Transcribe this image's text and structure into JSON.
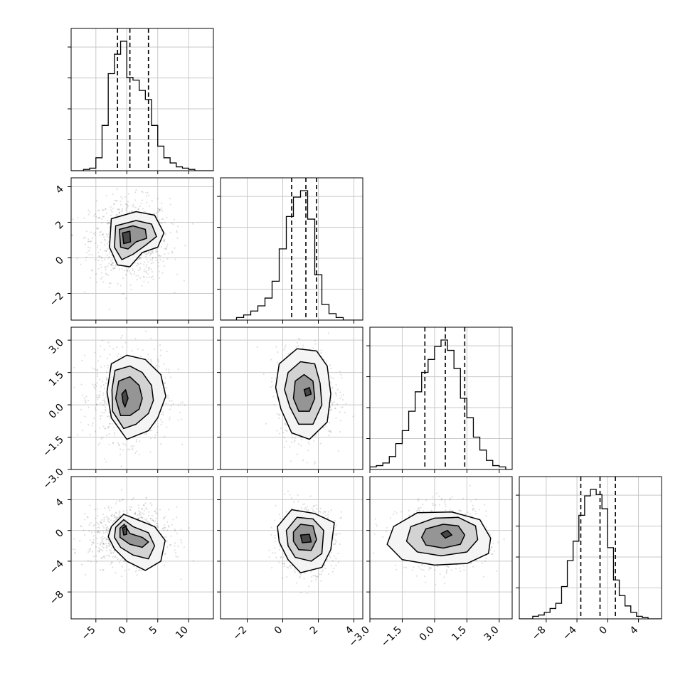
{
  "chart_data": {
    "type": "corner",
    "grid": true,
    "variables": [
      {
        "range": [
          -9,
          14
        ],
        "ticks": [
          -5,
          0,
          5,
          10
        ],
        "tick_labels": [
          "−5",
          "0",
          "5",
          "10"
        ],
        "quantiles": [
          -1.5,
          0.5,
          3.5
        ],
        "hist_edges": [
          -8,
          -7,
          -6,
          -5,
          -4,
          -3,
          -2,
          -1,
          0,
          1,
          2,
          3,
          4,
          5,
          6,
          7,
          8,
          9,
          10,
          11,
          12,
          13
        ],
        "hist_counts": [
          0.0,
          0.01,
          0.02,
          0.1,
          0.35,
          0.75,
          0.9,
          1.0,
          0.72,
          0.7,
          0.62,
          0.55,
          0.35,
          0.19,
          0.1,
          0.06,
          0.03,
          0.02,
          0.01,
          0.0,
          0.0
        ]
      },
      {
        "range": [
          -3.5,
          4.5
        ],
        "ticks": [
          -2,
          0,
          2,
          4
        ],
        "tick_labels": [
          "−2",
          "0",
          "2",
          "4"
        ],
        "quantiles": [
          0.5,
          1.3,
          1.9
        ],
        "hist_edges": [
          -3.0,
          -2.6,
          -2.2,
          -1.8,
          -1.4,
          -1.0,
          -0.6,
          -0.2,
          0.2,
          0.6,
          1.0,
          1.4,
          1.8,
          2.2,
          2.6,
          3.0,
          3.4,
          3.8
        ],
        "hist_counts": [
          0.0,
          0.02,
          0.04,
          0.07,
          0.11,
          0.17,
          0.3,
          0.55,
          0.8,
          0.95,
          1.0,
          0.78,
          0.35,
          0.12,
          0.05,
          0.02,
          0.0
        ]
      },
      {
        "range": [
          -3.0,
          3.6
        ],
        "ticks": [
          -3.0,
          -1.5,
          0.0,
          1.5,
          3.0
        ],
        "tick_labels": [
          "−3.0",
          "−1.5",
          "0.0",
          "1.5",
          "3.0"
        ],
        "quantiles": [
          -0.45,
          0.5,
          1.4
        ],
        "hist_edges": [
          -3.0,
          -2.7,
          -2.4,
          -2.1,
          -1.8,
          -1.5,
          -1.2,
          -0.9,
          -0.6,
          -0.3,
          0.0,
          0.3,
          0.6,
          0.9,
          1.2,
          1.5,
          1.8,
          2.1,
          2.4,
          2.7,
          3.0,
          3.3,
          3.6
        ],
        "hist_counts": [
          0.02,
          0.03,
          0.05,
          0.1,
          0.2,
          0.3,
          0.45,
          0.6,
          0.75,
          0.85,
          0.95,
          1.0,
          0.92,
          0.78,
          0.55,
          0.4,
          0.25,
          0.15,
          0.07,
          0.03,
          0.02,
          0.0
        ]
      },
      {
        "range": [
          -11.5,
          7.0
        ],
        "ticks": [
          -8,
          -4,
          0,
          4
        ],
        "tick_labels": [
          "−8",
          "−4",
          "0",
          "4"
        ],
        "quantiles": [
          -3.5,
          -1.0,
          1.0
        ],
        "hist_edges": [
          -10.5,
          -9.75,
          -9.0,
          -8.25,
          -7.5,
          -6.75,
          -6.0,
          -5.25,
          -4.5,
          -3.75,
          -3.0,
          -2.25,
          -1.5,
          -0.75,
          0.0,
          0.75,
          1.5,
          2.25,
          3.0,
          3.75,
          4.5,
          5.25,
          6.0
        ],
        "hist_counts": [
          0.0,
          0.02,
          0.03,
          0.05,
          0.08,
          0.12,
          0.25,
          0.45,
          0.6,
          0.8,
          0.95,
          1.0,
          0.96,
          0.85,
          0.55,
          0.3,
          0.18,
          0.1,
          0.05,
          0.02,
          0.01,
          0.0
        ]
      }
    ],
    "y_ticks": {
      "1": {
        "ticks": [
          -2,
          0,
          2,
          4
        ],
        "tick_labels": [
          "−2",
          "0",
          "2",
          "4"
        ]
      },
      "2": {
        "ticks": [
          -3.0,
          -1.5,
          0.0,
          1.5,
          3.0
        ],
        "tick_labels": [
          "−3.0",
          "−1.5",
          "0.0",
          "1.5",
          "3.0"
        ]
      },
      "3": {
        "ticks": [
          -8,
          -4,
          0,
          4
        ],
        "tick_labels": [
          "−8",
          "−4",
          "0",
          "4"
        ]
      }
    },
    "pairs": [
      {
        "row": 1,
        "col": 0,
        "center": [
          0.5,
          1.0
        ],
        "spread": [
          2.8,
          1.0
        ],
        "contours": [
          [
            [
              -2.5,
              2.2
            ],
            [
              1.5,
              2.6
            ],
            [
              4.5,
              2.4
            ],
            [
              6.0,
              1.4
            ],
            [
              5.0,
              0.6
            ],
            [
              2.5,
              0.3
            ],
            [
              0.5,
              -0.5
            ],
            [
              -1.5,
              -0.4
            ],
            [
              -2.8,
              0.6
            ]
          ],
          [
            [
              -1.8,
              1.8
            ],
            [
              1.5,
              2.1
            ],
            [
              4.0,
              1.9
            ],
            [
              4.8,
              1.2
            ],
            [
              3.0,
              0.7
            ],
            [
              1.0,
              0.2
            ],
            [
              -0.8,
              -0.1
            ],
            [
              -2.0,
              0.6
            ]
          ],
          [
            [
              -1.2,
              1.6
            ],
            [
              1.0,
              1.8
            ],
            [
              3.0,
              1.6
            ],
            [
              3.2,
              1.1
            ],
            [
              1.5,
              0.9
            ],
            [
              0.2,
              0.5
            ],
            [
              -1.0,
              0.6
            ]
          ],
          [
            [
              -0.7,
              1.4
            ],
            [
              0.5,
              1.5
            ],
            [
              0.6,
              0.9
            ],
            [
              -0.5,
              0.8
            ]
          ]
        ]
      },
      {
        "row": 2,
        "col": 0,
        "center": [
          0.5,
          0.4
        ],
        "spread": [
          2.6,
          0.9
        ],
        "contours": [
          [
            [
              -2.5,
              1.9
            ],
            [
              0,
              2.3
            ],
            [
              3,
              2.1
            ],
            [
              5.5,
              1.4
            ],
            [
              6.3,
              0.4
            ],
            [
              5.0,
              -0.6
            ],
            [
              3.5,
              -1.2
            ],
            [
              0,
              -1.6
            ],
            [
              -2.5,
              -0.6
            ],
            [
              -3.2,
              0.6
            ]
          ],
          [
            [
              -1.9,
              1.6
            ],
            [
              0.5,
              1.8
            ],
            [
              2.5,
              1.5
            ],
            [
              4.0,
              0.9
            ],
            [
              4.3,
              0.2
            ],
            [
              3.5,
              -0.4
            ],
            [
              1.5,
              -0.9
            ],
            [
              -0.5,
              -1.1
            ],
            [
              -2.3,
              -0.3
            ],
            [
              -2.4,
              0.7
            ]
          ],
          [
            [
              -1.3,
              1.1
            ],
            [
              0.5,
              1.3
            ],
            [
              2.0,
              0.9
            ],
            [
              2.5,
              0.3
            ],
            [
              2.0,
              -0.2
            ],
            [
              0.5,
              -0.5
            ],
            [
              -1.0,
              -0.5
            ],
            [
              -1.8,
              0.3
            ]
          ],
          [
            [
              -0.8,
              0.5
            ],
            [
              -0.2,
              0.7
            ],
            [
              0.2,
              0.3
            ],
            [
              -0.3,
              -0.1
            ],
            [
              -0.6,
              0.1
            ]
          ]
        ]
      },
      {
        "row": 2,
        "col": 1,
        "center": [
          1.3,
          0.5
        ],
        "spread": [
          0.7,
          0.9
        ],
        "contours": [
          [
            [
              -0.2,
              1.9
            ],
            [
              0.8,
              2.6
            ],
            [
              1.9,
              2.5
            ],
            [
              2.5,
              1.8
            ],
            [
              2.7,
              0.5
            ],
            [
              2.5,
              -0.8
            ],
            [
              1.5,
              -1.6
            ],
            [
              0.5,
              -1.3
            ],
            [
              -0.1,
              -0.2
            ],
            [
              -0.4,
              0.8
            ]
          ],
          [
            [
              0.3,
              1.5
            ],
            [
              1.0,
              2.0
            ],
            [
              1.8,
              1.9
            ],
            [
              2.1,
              1.0
            ],
            [
              2.2,
              0.0
            ],
            [
              1.7,
              -0.9
            ],
            [
              0.9,
              -0.9
            ],
            [
              0.4,
              -0.1
            ],
            [
              0.1,
              0.7
            ]
          ],
          [
            [
              0.7,
              1.1
            ],
            [
              1.2,
              1.4
            ],
            [
              1.7,
              1.1
            ],
            [
              1.8,
              0.3
            ],
            [
              1.5,
              -0.3
            ],
            [
              0.9,
              -0.3
            ],
            [
              0.6,
              0.3
            ]
          ],
          [
            [
              1.2,
              0.7
            ],
            [
              1.5,
              0.8
            ],
            [
              1.6,
              0.5
            ],
            [
              1.3,
              0.4
            ]
          ]
        ]
      },
      {
        "row": 3,
        "col": 0,
        "center": [
          0.5,
          -0.8
        ],
        "spread": [
          2.8,
          1.6
        ],
        "contours": [
          [
            [
              -2.5,
              0.5
            ],
            [
              -0.5,
              2.1
            ],
            [
              2.0,
              1.3
            ],
            [
              4.5,
              0.5
            ],
            [
              6.2,
              -1.3
            ],
            [
              5.5,
              -4.0
            ],
            [
              3.0,
              -5.2
            ],
            [
              0,
              -4.0
            ],
            [
              -2.0,
              -2.4
            ],
            [
              -3.0,
              -0.8
            ]
          ],
          [
            [
              -1.8,
              0.4
            ],
            [
              -0.5,
              1.4
            ],
            [
              1.0,
              0.5
            ],
            [
              3.5,
              -0.3
            ],
            [
              4.5,
              -2.0
            ],
            [
              3.5,
              -3.7
            ],
            [
              1.0,
              -3.2
            ],
            [
              -1.0,
              -2.2
            ],
            [
              -2.0,
              -0.9
            ]
          ],
          [
            [
              -1.1,
              0.3
            ],
            [
              -0.4,
              0.8
            ],
            [
              0.5,
              -0.4
            ],
            [
              2.5,
              -0.9
            ],
            [
              3.5,
              -1.5
            ],
            [
              2.5,
              -2.2
            ],
            [
              0.5,
              -1.8
            ],
            [
              -1.1,
              -0.9
            ]
          ],
          [
            [
              -0.7,
              0.3
            ],
            [
              -0.1,
              0.6
            ],
            [
              0.0,
              -0.5
            ],
            [
              -0.5,
              -0.6
            ]
          ]
        ]
      },
      {
        "row": 3,
        "col": 1,
        "center": [
          1.3,
          -1.2
        ],
        "spread": [
          0.7,
          1.8
        ],
        "contours": [
          [
            [
              -0.3,
              0.5
            ],
            [
              0.5,
              2.7
            ],
            [
              1.8,
              2.2
            ],
            [
              2.9,
              1.0
            ],
            [
              2.7,
              -2.5
            ],
            [
              2.2,
              -4.8
            ],
            [
              1.0,
              -5.5
            ],
            [
              0.3,
              -3.8
            ],
            [
              -0.2,
              -1.5
            ]
          ],
          [
            [
              0.2,
              0.0
            ],
            [
              0.8,
              1.7
            ],
            [
              1.7,
              1.5
            ],
            [
              2.3,
              0.0
            ],
            [
              2.2,
              -3.0
            ],
            [
              1.6,
              -4.0
            ],
            [
              0.7,
              -3.5
            ],
            [
              0.3,
              -2.0
            ]
          ],
          [
            [
              0.6,
              -0.2
            ],
            [
              1.0,
              0.8
            ],
            [
              1.7,
              0.6
            ],
            [
              1.9,
              -1.2
            ],
            [
              1.6,
              -2.6
            ],
            [
              0.9,
              -2.5
            ],
            [
              0.6,
              -1.4
            ]
          ],
          [
            [
              1.0,
              -0.6
            ],
            [
              1.5,
              -0.5
            ],
            [
              1.6,
              -1.5
            ],
            [
              1.1,
              -1.6
            ]
          ]
        ]
      },
      {
        "row": 3,
        "col": 2,
        "center": [
          0.4,
          -1.0
        ],
        "spread": [
          0.9,
          1.8
        ],
        "contours": [
          [
            [
              -1.9,
              0.5
            ],
            [
              -0.8,
              2.3
            ],
            [
              0.8,
              2.4
            ],
            [
              2.1,
              1.4
            ],
            [
              2.6,
              -1.0
            ],
            [
              2.5,
              -3.0
            ],
            [
              1.5,
              -4.3
            ],
            [
              0,
              -4.5
            ],
            [
              -1.5,
              -3.8
            ],
            [
              -2.2,
              -1.8
            ]
          ],
          [
            [
              -1.1,
              0.5
            ],
            [
              0,
              1.6
            ],
            [
              1.1,
              1.7
            ],
            [
              1.9,
              0.6
            ],
            [
              2.0,
              -1.2
            ],
            [
              1.5,
              -2.8
            ],
            [
              0.3,
              -3.3
            ],
            [
              -0.8,
              -2.8
            ],
            [
              -1.3,
              -1.4
            ]
          ],
          [
            [
              -0.4,
              0.2
            ],
            [
              0.4,
              0.8
            ],
            [
              1.1,
              0.6
            ],
            [
              1.4,
              -0.6
            ],
            [
              1.2,
              -1.8
            ],
            [
              0.4,
              -2.3
            ],
            [
              -0.4,
              -1.9
            ],
            [
              -0.6,
              -0.9
            ]
          ],
          [
            [
              0.3,
              -0.4
            ],
            [
              0.6,
              0.0
            ],
            [
              0.8,
              -0.6
            ],
            [
              0.5,
              -1.0
            ]
          ]
        ]
      }
    ]
  }
}
